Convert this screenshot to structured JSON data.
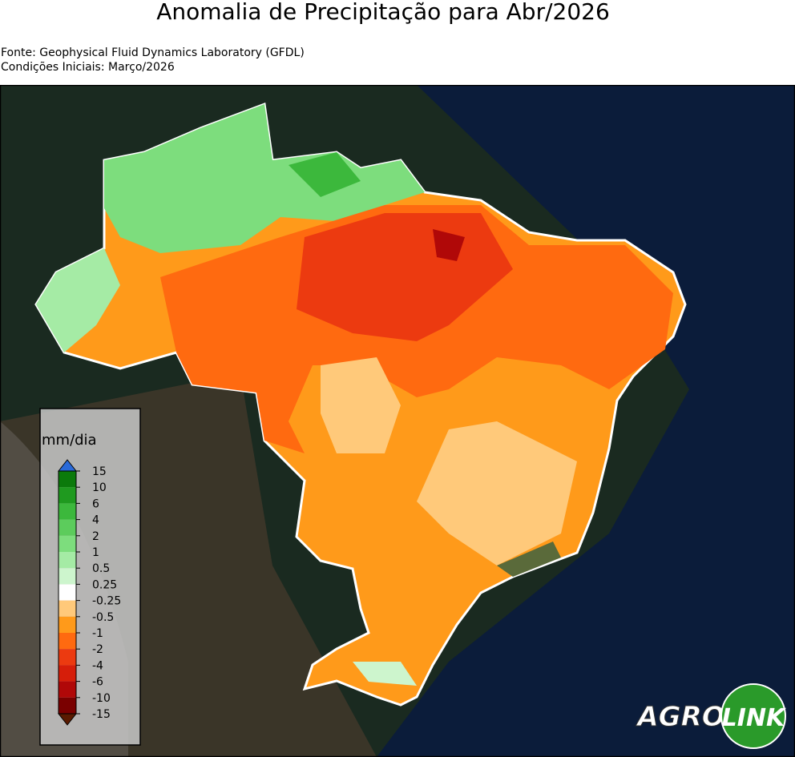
{
  "header": {
    "title": "Anomalia de Precipitação para Abr/2026",
    "source": "Fonte: Geophysical Fluid Dynamics Laboratory (GFDL)",
    "initial_conditions": "Condições Iniciais: Março/2026"
  },
  "colorbar": {
    "label": "mm/dia",
    "ticks": [
      15,
      10,
      6,
      4,
      2,
      1,
      0.5,
      0.25,
      -0.25,
      -0.5,
      -1,
      -2,
      -4,
      -6,
      -10,
      -15
    ],
    "colors": [
      "#0b7a0b",
      "#1f9a1f",
      "#3cb83c",
      "#5ccc5c",
      "#7ddd7d",
      "#a5eba5",
      "#cdf5cd",
      "#ffffff",
      "#ffc97a",
      "#ff9a1a",
      "#ff6a10",
      "#ec3a10",
      "#d61e0a",
      "#b00808",
      "#7a0000"
    ],
    "over_color": "#2a6ad8",
    "under_color": "#5a1a00"
  },
  "logo": {
    "left": "AGRO",
    "right": "LINK"
  }
}
